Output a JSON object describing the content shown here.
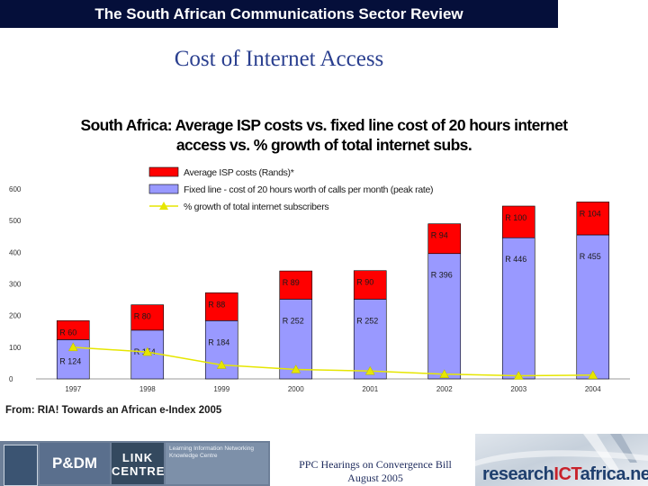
{
  "header": {
    "banner": "The South African Communications Sector Review"
  },
  "slide": {
    "title": "Cost of Internet Access"
  },
  "chart_data": {
    "type": "bar",
    "title_line1": "South Africa: Average ISP costs vs. fixed line cost of 20 hours internet",
    "title_line2": "access vs. % growth of total internet subs.",
    "categories": [
      "1997",
      "1998",
      "1999",
      "2000",
      "2001",
      "2002",
      "2003",
      "2004"
    ],
    "ylim": [
      0,
      600
    ],
    "yticks": [
      "0",
      "100",
      "200",
      "300",
      "400",
      "500",
      "600"
    ],
    "series": [
      {
        "name": "Fixed line - cost of 20 hours worth of calls per month (peak rate)",
        "color": "#9999ff",
        "values": [
          124,
          154,
          184,
          252,
          252,
          396,
          446,
          455
        ],
        "labels": [
          "R 124",
          "R 154",
          "R 184",
          "R 252",
          "R 252",
          "R 396",
          "R 446",
          "R 455"
        ]
      },
      {
        "name": "Average ISP costs (Rands)*",
        "color": "#ff0000",
        "values": [
          60,
          80,
          88,
          89,
          90,
          94,
          100,
          104
        ],
        "labels": [
          "R 60",
          "R 80",
          "R 88",
          "R 89",
          "R 90",
          "R 94",
          "R 100",
          "R 104"
        ]
      },
      {
        "name": "% growth of total internet subscribers",
        "color": "#e6e600",
        "values": [
          100,
          85,
          44,
          30,
          25,
          15,
          10,
          12
        ]
      }
    ],
    "legend": [
      "Average ISP costs (Rands)*",
      "Fixed line - cost of 20 hours worth of calls per month (peak rate)",
      "% growth of total internet subscribers"
    ]
  },
  "source": "From: RIA! Towards an African e-Index 2005",
  "footer": {
    "line1": "PPC Hearings on Convergence Bill",
    "line2": "August 2005",
    "logo_p": "P&DM",
    "logo_link": "LINK CENTRE",
    "logo_wits": "Learning Information Networking Knowledge Centre",
    "ria_part1": "research",
    "ria_part2": "ICT",
    "ria_part3": "africa.net"
  }
}
